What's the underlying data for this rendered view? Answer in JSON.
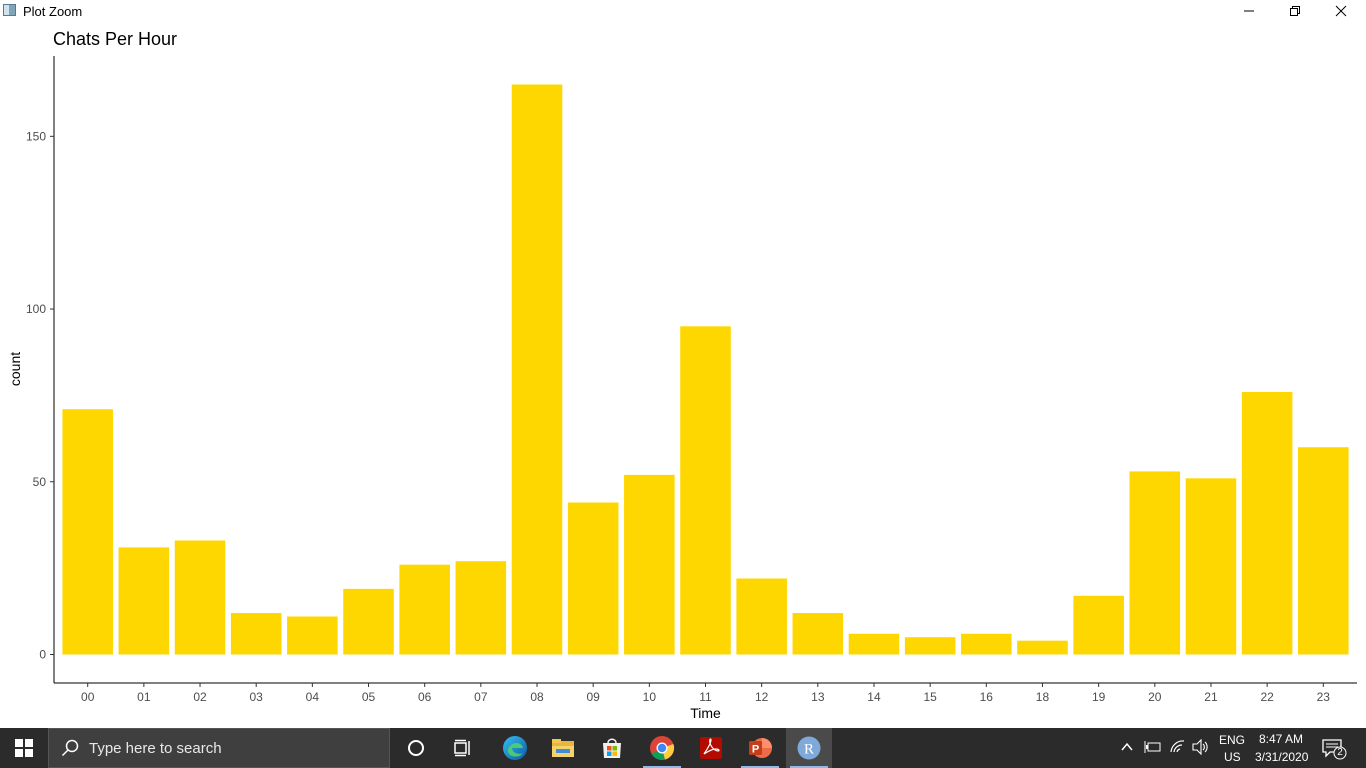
{
  "window": {
    "title": "Plot Zoom",
    "controls": [
      "minimize-icon",
      "restore-icon",
      "close-icon"
    ]
  },
  "chart_data": {
    "type": "bar",
    "title": "Chats Per Hour",
    "xlabel": "Time",
    "ylabel": "count",
    "categories": [
      "00",
      "01",
      "02",
      "03",
      "04",
      "05",
      "06",
      "07",
      "08",
      "09",
      "10",
      "11",
      "12",
      "13",
      "14",
      "15",
      "16",
      "18",
      "19",
      "20",
      "21",
      "22",
      "23"
    ],
    "values": [
      71,
      31,
      33,
      12,
      11,
      19,
      26,
      27,
      165,
      44,
      52,
      95,
      22,
      12,
      6,
      5,
      6,
      4,
      17,
      53,
      51,
      76,
      60
    ],
    "yticks": [
      0,
      50,
      100,
      150
    ],
    "ylim": [
      -8.25,
      173.25
    ],
    "bar_color": "#FFD700",
    "grid": false
  },
  "taskbar": {
    "search_placeholder": "Type here to search",
    "apps": [
      "task-view-icon",
      "edge-icon",
      "file-explorer-icon",
      "store-icon",
      "chrome-icon",
      "acrobat-icon",
      "powerpoint-icon",
      "r-icon"
    ],
    "tray": {
      "language": "ENG",
      "region": "US",
      "time": "8:47 AM",
      "date": "3/31/2020",
      "notification_count": "2"
    }
  }
}
